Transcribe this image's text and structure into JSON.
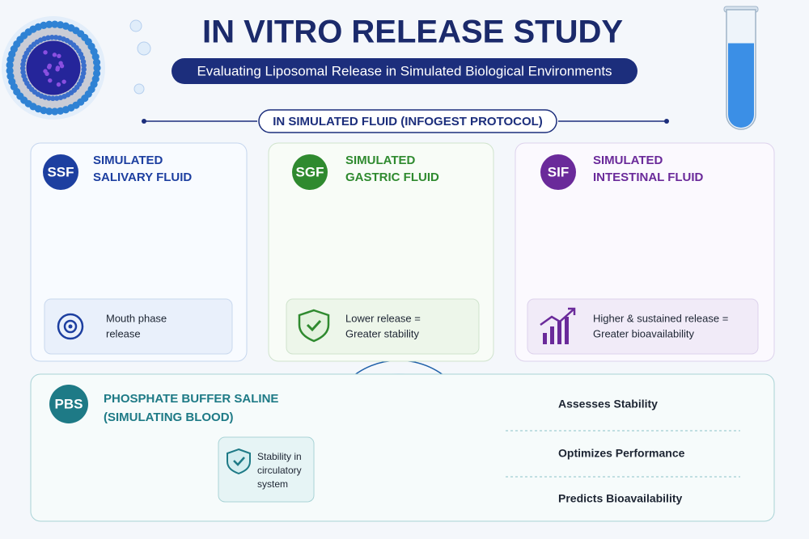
{
  "header": {
    "title": "IN VITRO RELEASE STUDY",
    "subtitle": "Evaluating Liposomal Release in Simulated Biological Environments",
    "section": "IN SIMULATED FLUID (INFOGEST PROTOCOL)"
  },
  "panels": [
    {
      "badge": "SSF",
      "title_lines": [
        "SIMULATED",
        "SALIVARY FLUID"
      ],
      "note_lines": [
        "Mouth phase",
        "release"
      ]
    },
    {
      "badge": "SGF",
      "title_lines": [
        "SIMULATED",
        "GASTRIC FLUID"
      ],
      "note_lines": [
        "Lower release =",
        "Greater stability"
      ]
    },
    {
      "badge": "SIF",
      "title_lines": [
        "SIMULATED",
        "INTESTINAL FLUID"
      ],
      "note_lines": [
        "Higher & sustained release =",
        "Greater bioavailability"
      ]
    }
  ],
  "pbs": {
    "badge": "PBS",
    "title_lines": [
      "PHOSPHATE BUFFER SALINE",
      "(SIMULATING BLOOD)"
    ],
    "note_lines": [
      "Stability in",
      "circulatory",
      "system"
    ]
  },
  "benefits": [
    "Assesses Stability",
    "Optimizes Performance",
    "Predicts Bioavailability"
  ]
}
